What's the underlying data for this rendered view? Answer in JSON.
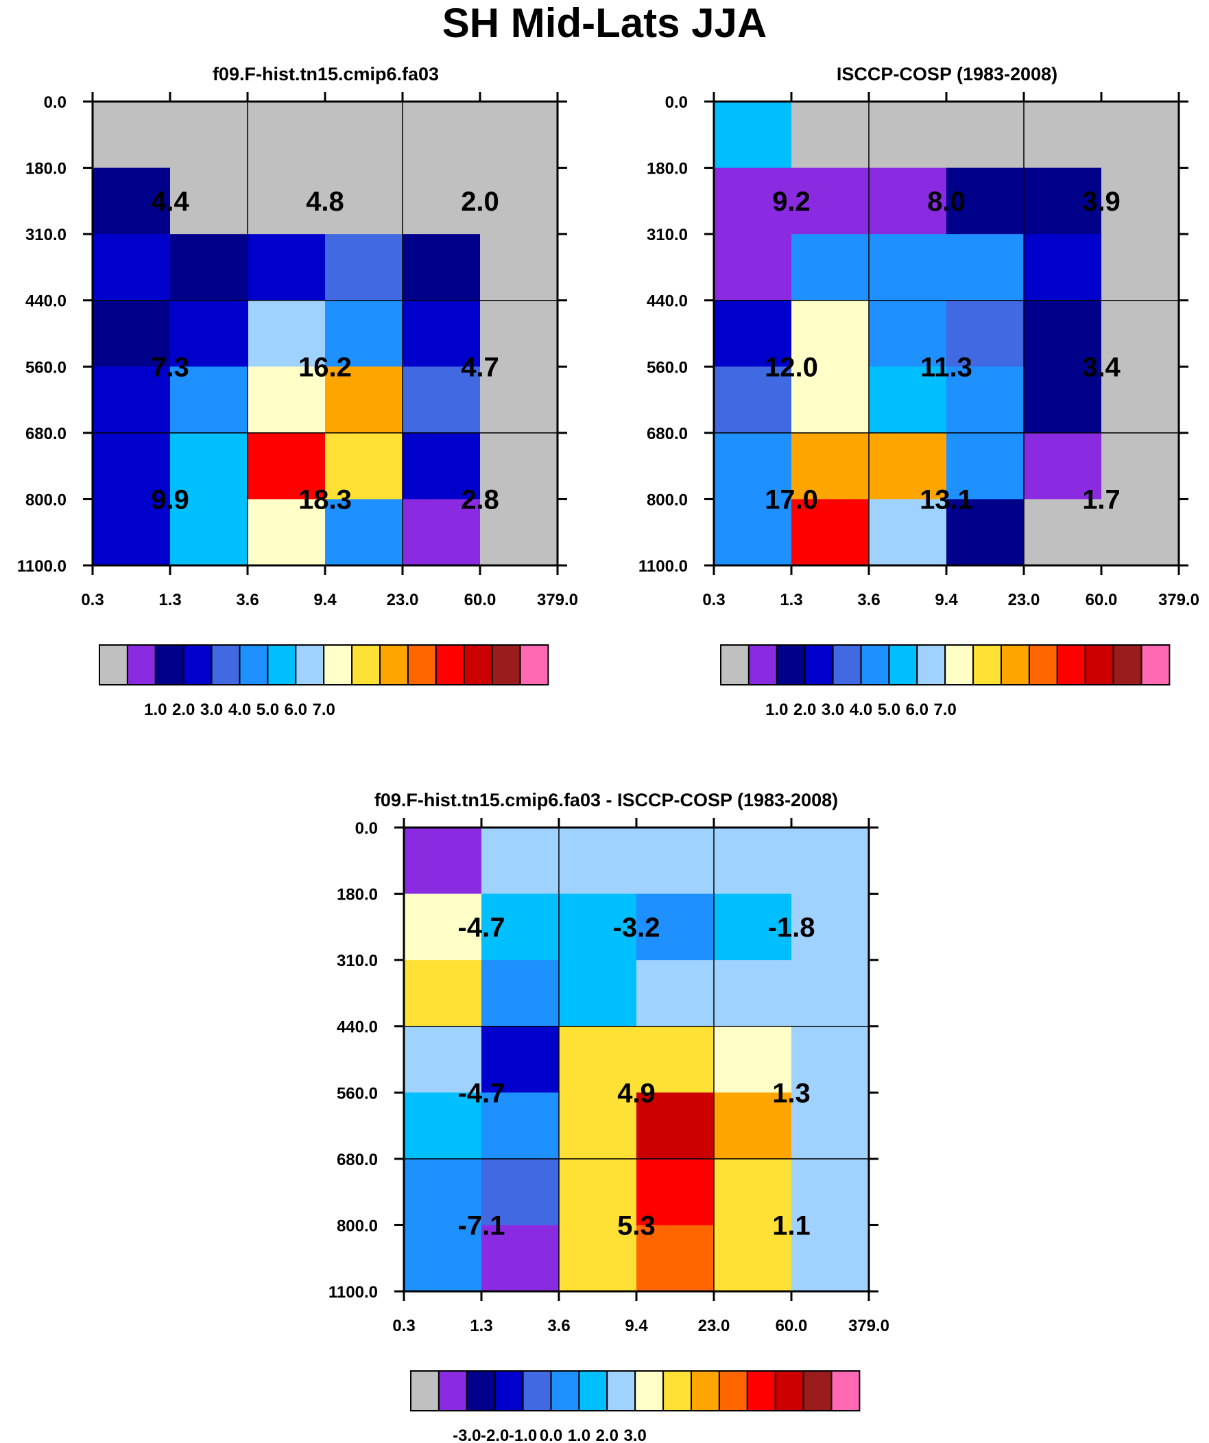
{
  "title": "SH Mid-Lats JJA",
  "colors": {
    "palette": [
      "#c0c0c0",
      "#8a2be2",
      "#00008b",
      "#0000cd",
      "#4169e1",
      "#1e90ff",
      "#00bfff",
      "#a0d2ff",
      "#ffffc8",
      "#ffe135",
      "#ffa500",
      "#ff6600",
      "#ff0000",
      "#cc0000",
      "#9b1c1c",
      "#ff69b4"
    ]
  },
  "chart_data": [
    {
      "type": "heatmap",
      "title": "f09.F-hist.tn15.cmip6.fa03",
      "x_tick_labels": [
        "0.3",
        "1.3",
        "3.6",
        "9.4",
        "23.0",
        "60.0",
        "379.0"
      ],
      "y_tick_labels": [
        "0.0",
        "180.0",
        "310.0",
        "440.0",
        "560.0",
        "680.0",
        "800.0",
        "1100.0"
      ],
      "cell_color_index": [
        [
          0,
          0,
          0,
          0,
          0,
          0
        ],
        [
          2,
          0,
          0,
          0,
          0,
          0
        ],
        [
          3,
          2,
          3,
          4,
          2,
          0
        ],
        [
          2,
          3,
          7,
          5,
          3,
          0
        ],
        [
          3,
          5,
          8,
          10,
          4,
          0
        ],
        [
          3,
          6,
          12,
          9,
          3,
          0
        ],
        [
          3,
          6,
          8,
          5,
          1,
          0
        ]
      ],
      "bin_values": [
        "4.4",
        "4.8",
        "2.0",
        "7.3",
        "16.2",
        "4.7",
        "9.9",
        "18.3",
        "2.8"
      ],
      "colorbar_labels": [
        "1.0",
        "2.0",
        "3.0",
        "4.0",
        "5.0",
        "6.0",
        "7.0"
      ]
    },
    {
      "type": "heatmap",
      "title": "ISCCP-COSP (1983-2008)",
      "x_tick_labels": [
        "0.3",
        "1.3",
        "3.6",
        "9.4",
        "23.0",
        "60.0",
        "379.0"
      ],
      "y_tick_labels": [
        "0.0",
        "180.0",
        "310.0",
        "440.0",
        "560.0",
        "680.0",
        "800.0",
        "1100.0"
      ],
      "cell_color_index": [
        [
          6,
          0,
          0,
          0,
          0,
          0
        ],
        [
          1,
          1,
          1,
          2,
          2,
          0
        ],
        [
          1,
          5,
          5,
          5,
          3,
          0
        ],
        [
          3,
          8,
          5,
          4,
          2,
          0
        ],
        [
          4,
          8,
          6,
          5,
          2,
          0
        ],
        [
          5,
          10,
          10,
          5,
          1,
          0
        ],
        [
          5,
          12,
          7,
          2,
          0,
          0
        ]
      ],
      "bin_values": [
        "9.2",
        "8.0",
        "3.9",
        "12.0",
        "11.3",
        "3.4",
        "17.0",
        "13.1",
        "1.7"
      ],
      "colorbar_labels": [
        "1.0",
        "2.0",
        "3.0",
        "4.0",
        "5.0",
        "6.0",
        "7.0"
      ]
    },
    {
      "type": "heatmap",
      "title": "f09.F-hist.tn15.cmip6.fa03 - ISCCP-COSP (1983-2008)",
      "x_tick_labels": [
        "0.3",
        "1.3",
        "3.6",
        "9.4",
        "23.0",
        "60.0",
        "379.0"
      ],
      "y_tick_labels": [
        "0.0",
        "180.0",
        "310.0",
        "440.0",
        "560.0",
        "680.0",
        "800.0",
        "1100.0"
      ],
      "cell_color_index": [
        [
          1,
          7,
          7,
          7,
          7,
          7
        ],
        [
          8,
          6,
          6,
          5,
          6,
          7
        ],
        [
          9,
          5,
          6,
          7,
          7,
          7
        ],
        [
          7,
          3,
          9,
          9,
          8,
          7
        ],
        [
          6,
          5,
          9,
          13,
          10,
          7
        ],
        [
          5,
          4,
          9,
          12,
          9,
          7
        ],
        [
          5,
          1,
          9,
          11,
          9,
          7
        ]
      ],
      "bin_values": [
        "-4.7",
        "-3.2",
        "-1.8",
        "-4.7",
        "4.9",
        "1.3",
        "-7.1",
        "5.3",
        "1.1"
      ],
      "colorbar_labels": [
        "-3.0",
        "-2.0",
        "-1.0",
        "0.0",
        "1.0",
        "2.0",
        "3.0"
      ]
    }
  ]
}
